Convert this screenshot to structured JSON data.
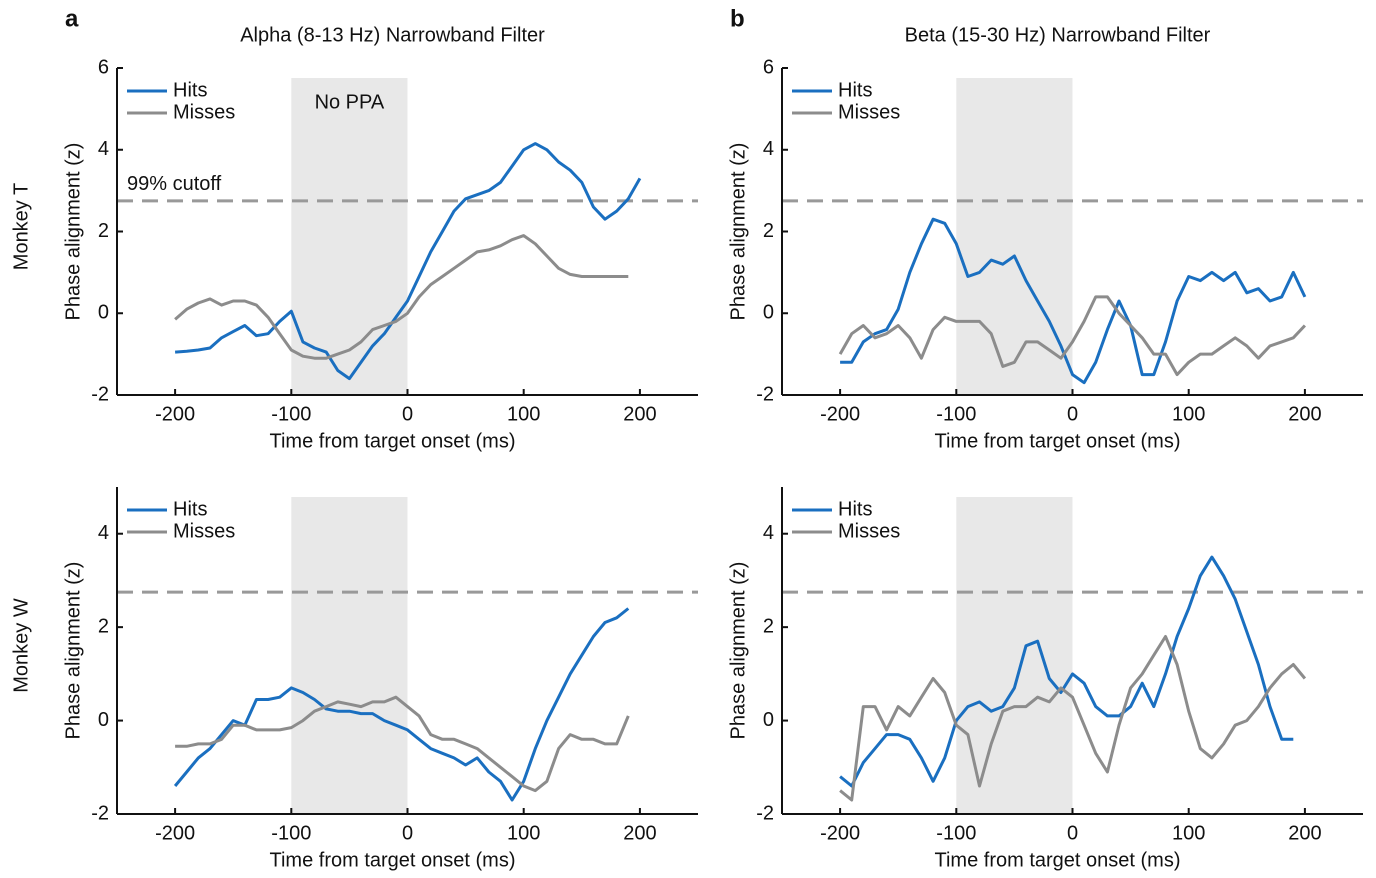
{
  "chart_data": [
    {
      "type": "line",
      "panel_label": "a",
      "title": "Alpha (8-13 Hz) Narrowband Filter",
      "row_label": "Monkey T",
      "x_label": "Time from target onset (ms)",
      "y_label": "Phase alignment (z)",
      "x": [
        -200,
        -190,
        -180,
        -170,
        -160,
        -150,
        -140,
        -130,
        -120,
        -110,
        -100,
        -90,
        -80,
        -70,
        -60,
        -50,
        -40,
        -30,
        -20,
        -10,
        0,
        10,
        20,
        30,
        40,
        50,
        60,
        70,
        80,
        90,
        100,
        110,
        120,
        130,
        140,
        150,
        160,
        170,
        180,
        190,
        200
      ],
      "series": [
        {
          "name": "Hits",
          "color": "#1a6fc0",
          "values": [
            -0.95,
            -0.93,
            -0.9,
            -0.85,
            -0.6,
            -0.45,
            -0.3,
            -0.55,
            -0.5,
            -0.2,
            0.05,
            -0.7,
            -0.85,
            -0.95,
            -1.4,
            -1.6,
            -1.2,
            -0.8,
            -0.5,
            -0.1,
            0.3,
            0.9,
            1.5,
            2.0,
            2.5,
            2.8,
            2.9,
            3.0,
            3.2,
            3.6,
            4.0,
            4.15,
            4.0,
            3.7,
            3.5,
            3.2,
            2.6,
            2.3,
            2.5,
            2.8,
            3.3
          ]
        },
        {
          "name": "Misses",
          "color": "#8c8c8c",
          "values": [
            -0.15,
            0.1,
            0.25,
            0.35,
            0.2,
            0.3,
            0.3,
            0.2,
            -0.1,
            -0.5,
            -0.9,
            -1.05,
            -1.1,
            -1.1,
            -1.0,
            -0.9,
            -0.7,
            -0.4,
            -0.3,
            -0.2,
            0.0,
            0.4,
            0.7,
            0.9,
            1.1,
            1.3,
            1.5,
            1.55,
            1.65,
            1.8,
            1.9,
            1.7,
            1.4,
            1.1,
            0.95,
            0.9,
            0.9,
            0.9,
            0.9,
            0.9,
            null
          ]
        }
      ],
      "xlim": [
        -250,
        250
      ],
      "ylim": [
        -2,
        6
      ],
      "xticks": [
        -200,
        -100,
        0,
        100,
        200
      ],
      "yticks": [
        -2,
        0,
        2,
        4,
        6
      ],
      "shaded_region": {
        "x": [
          -100,
          0
        ],
        "label": "No PPA"
      },
      "threshold": {
        "value": 2.75,
        "label": "99% cutoff"
      },
      "legend": "upper left"
    },
    {
      "type": "line",
      "panel_label": "b",
      "title": "Beta (15-30 Hz) Narrowband Filter",
      "x_label": "Time from target onset (ms)",
      "y_label": "Phase alignment (z)",
      "x": [
        -200,
        -190,
        -180,
        -170,
        -160,
        -150,
        -140,
        -130,
        -120,
        -110,
        -100,
        -90,
        -80,
        -70,
        -60,
        -50,
        -40,
        -30,
        -20,
        -10,
        0,
        10,
        20,
        30,
        40,
        50,
        60,
        70,
        80,
        90,
        100,
        110,
        120,
        130,
        140,
        150,
        160,
        170,
        180,
        190,
        200
      ],
      "series": [
        {
          "name": "Hits",
          "color": "#1a6fc0",
          "values": [
            -1.2,
            -1.2,
            -0.7,
            -0.5,
            -0.4,
            0.1,
            1.0,
            1.7,
            2.3,
            2.2,
            1.7,
            0.9,
            1.0,
            1.3,
            1.2,
            1.4,
            0.8,
            0.3,
            -0.2,
            -0.8,
            -1.5,
            -1.7,
            -1.2,
            -0.4,
            0.3,
            -0.3,
            -1.5,
            -1.5,
            -0.7,
            0.3,
            0.9,
            0.8,
            1.0,
            0.8,
            1.0,
            0.5,
            0.6,
            0.3,
            0.4,
            1.0,
            0.4
          ]
        },
        {
          "name": "Misses",
          "color": "#8c8c8c",
          "values": [
            -1.0,
            -0.5,
            -0.3,
            -0.6,
            -0.5,
            -0.3,
            -0.6,
            -1.1,
            -0.4,
            -0.1,
            -0.2,
            -0.2,
            -0.2,
            -0.5,
            -1.3,
            -1.2,
            -0.7,
            -0.7,
            -0.9,
            -1.1,
            -0.7,
            -0.2,
            0.4,
            0.4,
            0.0,
            -0.3,
            -0.6,
            -1.0,
            -1.0,
            -1.5,
            -1.2,
            -1.0,
            -1.0,
            -0.8,
            -0.6,
            -0.8,
            -1.1,
            -0.8,
            -0.7,
            -0.6,
            -0.3
          ]
        }
      ],
      "xlim": [
        -250,
        250
      ],
      "ylim": [
        -2,
        6
      ],
      "xticks": [
        -200,
        -100,
        0,
        100,
        200
      ],
      "yticks": [
        -2,
        0,
        2,
        4,
        6
      ],
      "shaded_region": {
        "x": [
          -100,
          0
        ]
      },
      "threshold": {
        "value": 2.75
      },
      "legend": "upper left"
    },
    {
      "type": "line",
      "row_label": "Monkey W",
      "x_label": "Time from target onset (ms)",
      "y_label": "Phase alignment (z)",
      "x": [
        -200,
        -190,
        -180,
        -170,
        -160,
        -150,
        -140,
        -130,
        -120,
        -110,
        -100,
        -90,
        -80,
        -70,
        -60,
        -50,
        -40,
        -30,
        -20,
        -10,
        0,
        10,
        20,
        30,
        40,
        50,
        60,
        70,
        80,
        90,
        100,
        110,
        120,
        130,
        140,
        150,
        160,
        170,
        180,
        190,
        200
      ],
      "series": [
        {
          "name": "Hits",
          "color": "#1a6fc0",
          "values": [
            -1.4,
            -1.1,
            -0.8,
            -0.6,
            -0.3,
            0.0,
            -0.1,
            0.45,
            0.45,
            0.5,
            0.7,
            0.6,
            0.45,
            0.25,
            0.2,
            0.2,
            0.15,
            0.15,
            0.0,
            -0.1,
            -0.2,
            -0.4,
            -0.6,
            -0.7,
            -0.8,
            -0.95,
            -0.8,
            -1.1,
            -1.3,
            -1.7,
            -1.3,
            -0.6,
            0.0,
            0.5,
            1.0,
            1.4,
            1.8,
            2.1,
            2.2,
            2.4,
            null
          ]
        },
        {
          "name": "Misses",
          "color": "#8c8c8c",
          "values": [
            -0.55,
            -0.55,
            -0.5,
            -0.5,
            -0.4,
            -0.1,
            -0.1,
            -0.2,
            -0.2,
            -0.2,
            -0.15,
            0.0,
            0.2,
            0.3,
            0.4,
            0.35,
            0.3,
            0.4,
            0.4,
            0.5,
            0.3,
            0.1,
            -0.3,
            -0.4,
            -0.4,
            -0.5,
            -0.6,
            -0.8,
            -1.0,
            -1.2,
            -1.4,
            -1.5,
            -1.3,
            -0.6,
            -0.3,
            -0.4,
            -0.4,
            -0.5,
            -0.5,
            0.1,
            null
          ]
        }
      ],
      "xlim": [
        -250,
        250
      ],
      "ylim": [
        -2,
        5
      ],
      "xticks": [
        -200,
        -100,
        0,
        100,
        200
      ],
      "yticks": [
        -2,
        0,
        2,
        4
      ],
      "shaded_region": {
        "x": [
          -100,
          0
        ]
      },
      "threshold": {
        "value": 2.75
      },
      "legend": "upper left"
    },
    {
      "type": "line",
      "x_label": "Time from target onset (ms)",
      "y_label": "Phase alignment (z)",
      "x": [
        -200,
        -190,
        -180,
        -170,
        -160,
        -150,
        -140,
        -130,
        -120,
        -110,
        -100,
        -90,
        -80,
        -70,
        -60,
        -50,
        -40,
        -30,
        -20,
        -10,
        0,
        10,
        20,
        30,
        40,
        50,
        60,
        70,
        80,
        90,
        100,
        110,
        120,
        130,
        140,
        150,
        160,
        170,
        180,
        190,
        200
      ],
      "series": [
        {
          "name": "Hits",
          "color": "#1a6fc0",
          "values": [
            -1.2,
            -1.4,
            -0.9,
            -0.6,
            -0.3,
            -0.3,
            -0.4,
            -0.8,
            -1.3,
            -0.8,
            0.0,
            0.3,
            0.4,
            0.2,
            0.3,
            0.7,
            1.6,
            1.7,
            0.9,
            0.6,
            1.0,
            0.8,
            0.3,
            0.1,
            0.1,
            0.3,
            0.8,
            0.3,
            1.0,
            1.8,
            2.4,
            3.1,
            3.5,
            3.1,
            2.6,
            1.9,
            1.2,
            0.3,
            -0.4,
            -0.4,
            null
          ]
        },
        {
          "name": "Misses",
          "color": "#8c8c8c",
          "values": [
            -1.5,
            -1.7,
            0.3,
            0.3,
            -0.2,
            0.3,
            0.1,
            0.5,
            0.9,
            0.6,
            -0.1,
            -0.3,
            -1.4,
            -0.5,
            0.2,
            0.3,
            0.3,
            0.5,
            0.4,
            0.7,
            0.5,
            -0.1,
            -0.7,
            -1.1,
            -0.1,
            0.7,
            1.0,
            1.4,
            1.8,
            1.2,
            0.2,
            -0.6,
            -0.8,
            -0.5,
            -0.1,
            0.0,
            0.3,
            0.7,
            1.0,
            1.2,
            0.9
          ]
        }
      ],
      "xlim": [
        -250,
        250
      ],
      "ylim": [
        -2,
        5
      ],
      "xticks": [
        -200,
        -100,
        0,
        100,
        200
      ],
      "yticks": [
        -2,
        0,
        2,
        4
      ],
      "shaded_region": {
        "x": [
          -100,
          0
        ]
      },
      "threshold": {
        "value": 2.75
      },
      "legend": "upper left"
    }
  ]
}
